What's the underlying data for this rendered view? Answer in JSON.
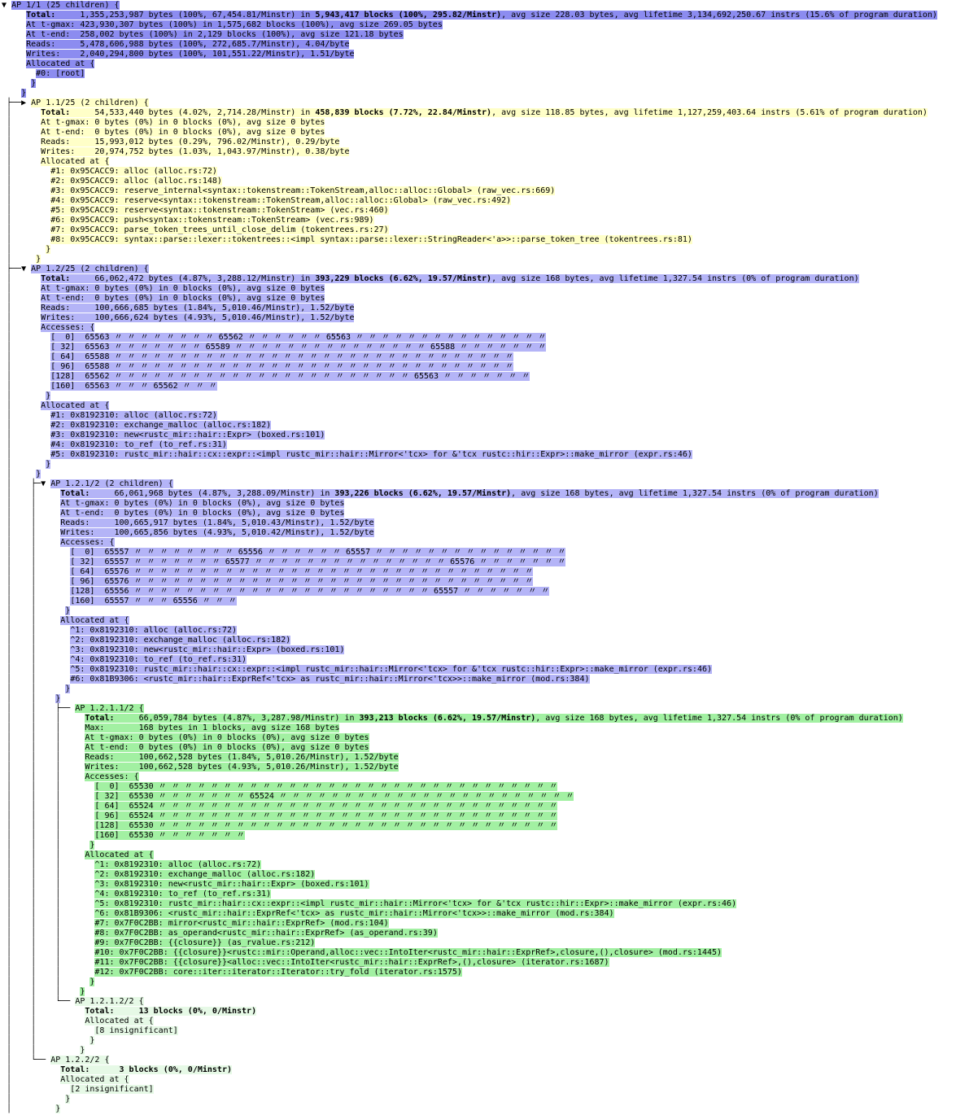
{
  "colors": {
    "root": "#8c8cf0",
    "branch": "#b4b4f7",
    "collapsed": "#ffffc8",
    "leaf": "#a2f0a2",
    "insig": "#e6f9e6"
  },
  "labels": {
    "allocated_at": "Allocated at {",
    "accesses": "Accesses: {",
    "close": "}",
    "ditto": "〃",
    "access_row_labels": [
      "[  0]",
      "[ 32]",
      "[ 64]",
      "[ 96]",
      "[128]",
      "[160]"
    ],
    "expanded_icon": "▼",
    "collapsed_icon": "▶"
  },
  "nodes": [
    {
      "id": "1",
      "color": "root",
      "head": "",
      "arrow": "▼",
      "cont": "",
      "cols": {
        "stat": 5,
        "row": 7,
        "frame": 7,
        "inner": 6,
        "close": 4
      },
      "header": "AP 1/1 (25 children) {",
      "stats": [
        [
          [
            "Total:",
            1
          ],
          [
            "     1,355,253,987 bytes (100%, 67,454.81/Minstr) in ",
            0
          ],
          [
            "5,943,417 blocks (100%, 295.82/Minstr)",
            1
          ],
          [
            ", avg size 228.03 bytes, avg lifetime 3,134,692,250.67 instrs (15.6% of program duration)",
            0
          ]
        ],
        [
          [
            "At t-gmax: 423,930,307 bytes (100%) in 1,575,682 blocks (100%), avg size 269.05 bytes",
            0
          ]
        ],
        [
          [
            "At t-end:  258,002 bytes (100%) in 2,129 blocks (100%), avg size 121.18 bytes",
            0
          ]
        ],
        [
          [
            "Reads:     5,478,606,988 bytes (100%, 272,685.7/Minstr), 4.04/byte",
            0
          ]
        ],
        [
          [
            "Writes:    2,040,294,800 bytes (100%, 101,551.22/Minstr), 1.51/byte",
            0
          ]
        ]
      ],
      "accesses": null,
      "frames": [
        "#0: [root]"
      ]
    },
    {
      "id": "1.1",
      "color": "collapsed",
      "head": " ├──",
      "arrow": "▶",
      "cont": " │",
      "cols": {
        "stat": 8,
        "row": 10,
        "frame": 10,
        "inner": 9,
        "close": 7
      },
      "header": "AP 1.1/25 (2 children) {",
      "stats": [
        [
          [
            "Total:",
            1
          ],
          [
            "     54,533,440 bytes (4.02%, 2,714.28/Minstr) in ",
            0
          ],
          [
            "458,839 blocks (7.72%, 22.84/Minstr)",
            1
          ],
          [
            ", avg size 118.85 bytes, avg lifetime 1,127,259,403.64 instrs (5.61% of program duration)",
            0
          ]
        ],
        [
          [
            "At t-gmax: 0 bytes (0%) in 0 blocks (0%), avg size 0 bytes",
            0
          ]
        ],
        [
          [
            "At t-end:  0 bytes (0%) in 0 blocks (0%), avg size 0 bytes",
            0
          ]
        ],
        [
          [
            "Reads:     15,993,012 bytes (0.29%, 796.02/Minstr), 0.29/byte",
            0
          ]
        ],
        [
          [
            "Writes:    20,974,752 bytes (1.03%, 1,043.97/Minstr), 0.38/byte",
            0
          ]
        ]
      ],
      "accesses": null,
      "frames": [
        "#1: 0x95CACC9: alloc (alloc.rs:72)",
        "#2: 0x95CACC9: alloc (alloc.rs:148)",
        "#3: 0x95CACC9: reserve_internal<syntax::tokenstream::TokenStream,alloc::alloc::Global> (raw_vec.rs:669)",
        "#4: 0x95CACC9: reserve<syntax::tokenstream::TokenStream,alloc::alloc::Global> (raw_vec.rs:492)",
        "#5: 0x95CACC9: reserve<syntax::tokenstream::TokenStream> (vec.rs:460)",
        "#6: 0x95CACC9: push<syntax::tokenstream::TokenStream> (vec.rs:989)",
        "#7: 0x95CACC9: parse_token_trees_until_close_delim (tokentrees.rs:27)",
        "#8: 0x95CACC9: syntax::parse::lexer::tokentrees::<impl syntax::parse::lexer::StringReader<'a>>::parse_token_tree (tokentrees.rs:81)"
      ]
    },
    {
      "id": "1.2",
      "color": "branch",
      "head": " ├──",
      "arrow": "▼",
      "cont": " │",
      "cols": {
        "stat": 8,
        "row": 10,
        "frame": 10,
        "inner": 9,
        "close": 7
      },
      "header": "AP 1.2/25 (2 children) {",
      "stats": [
        [
          [
            "Total:",
            1
          ],
          [
            "     66,062,472 bytes (4.87%, 3,288.12/Minstr) in ",
            0
          ],
          [
            "393,229 blocks (6.62%, 19.57/Minstr)",
            1
          ],
          [
            ", avg size 168 bytes, avg lifetime 1,327.54 instrs (0% of program duration)",
            0
          ]
        ],
        [
          [
            "At t-gmax: 0 bytes (0%) in 0 blocks (0%), avg size 0 bytes",
            0
          ]
        ],
        [
          [
            "At t-end:  0 bytes (0%) in 0 blocks (0%), avg size 0 bytes",
            0
          ]
        ],
        [
          [
            "Reads:     100,666,685 bytes (1.84%, 5,010.46/Minstr), 1.52/byte",
            0
          ]
        ],
        [
          [
            "Writes:    100,666,624 bytes (4.93%, 5,010.46/Minstr), 1.52/byte",
            0
          ]
        ]
      ],
      "accesses": [
        [
          [
            "65563",
            9
          ],
          [
            "65562",
            7
          ],
          [
            "65563",
            16
          ]
        ],
        [
          [
            "65563",
            8
          ],
          [
            "65589",
            16
          ],
          [
            "65588",
            8
          ]
        ],
        [
          [
            "65588",
            32
          ]
        ],
        [
          [
            "65588",
            32
          ]
        ],
        [
          [
            "65562",
            24
          ],
          [
            "65563",
            8
          ]
        ],
        [
          [
            "65563",
            4
          ],
          [
            "65562",
            4
          ]
        ]
      ],
      "frames": [
        "#1: 0x8192310: alloc (alloc.rs:72)",
        "#2: 0x8192310: exchange_malloc (alloc.rs:182)",
        "#3: 0x8192310: new<rustc_mir::hair::Expr> (boxed.rs:101)",
        "#4: 0x8192310: to_ref (to_ref.rs:31)",
        "#5: 0x8192310: rustc_mir::hair::cx::expr::<impl rustc_mir::hair::Mirror<'tcx> for &'tcx rustc::hir::Expr>::make_mirror (expr.rs:46)"
      ]
    },
    {
      "id": "1.2.1",
      "color": "branch",
      "head": " │    ├─",
      "arrow": "▼",
      "cont": " │    │",
      "cols": {
        "stat": 12,
        "row": 14,
        "frame": 14,
        "inner": 13,
        "close": 11
      },
      "header": "AP 1.2.1/2 (2 children) {",
      "stats": [
        [
          [
            "Total:",
            1
          ],
          [
            "     66,061,968 bytes (4.87%, 3,288.09/Minstr) in ",
            0
          ],
          [
            "393,226 blocks (6.62%, 19.57/Minstr)",
            1
          ],
          [
            ", avg size 168 bytes, avg lifetime 1,327.54 instrs (0% of program duration)",
            0
          ]
        ],
        [
          [
            "At t-gmax: 0 bytes (0%) in 0 blocks (0%), avg size 0 bytes",
            0
          ]
        ],
        [
          [
            "At t-end:  0 bytes (0%) in 0 blocks (0%), avg size 0 bytes",
            0
          ]
        ],
        [
          [
            "Reads:     100,665,917 bytes (1.84%, 5,010.43/Minstr), 1.52/byte",
            0
          ]
        ],
        [
          [
            "Writes:    100,665,856 bytes (4.93%, 5,010.42/Minstr), 1.52/byte",
            0
          ]
        ]
      ],
      "accesses": [
        [
          [
            "65557",
            9
          ],
          [
            "65556",
            7
          ],
          [
            "65557",
            16
          ]
        ],
        [
          [
            "65557",
            8
          ],
          [
            "65577",
            16
          ],
          [
            "65576",
            8
          ]
        ],
        [
          [
            "65576",
            32
          ]
        ],
        [
          [
            "65576",
            32
          ]
        ],
        [
          [
            "65556",
            24
          ],
          [
            "65557",
            8
          ]
        ],
        [
          [
            "65557",
            4
          ],
          [
            "65556",
            4
          ]
        ]
      ],
      "frames": [
        "^1: 0x8192310: alloc (alloc.rs:72)",
        "^2: 0x8192310: exchange_malloc (alloc.rs:182)",
        "^3: 0x8192310: new<rustc_mir::hair::Expr> (boxed.rs:101)",
        "^4: 0x8192310: to_ref (to_ref.rs:31)",
        "^5: 0x8192310: rustc_mir::hair::cx::expr::<impl rustc_mir::hair::Mirror<'tcx> for &'tcx rustc::hir::Expr>::make_mirror (expr.rs:46)",
        "#6: 0x81B9306: <rustc_mir::hair::ExprRef<'tcx> as rustc_mir::hair::Mirror<'tcx>>::make_mirror (mod.rs:384)"
      ]
    },
    {
      "id": "1.2.1.1",
      "color": "leaf",
      "head": " │    │    ├── ",
      "arrow": null,
      "cont": " │    │    │",
      "cols": {
        "stat": 17,
        "row": 19,
        "frame": 19,
        "inner": 18,
        "close": 16
      },
      "header": "AP 1.2.1.1/2 {",
      "stats": [
        [
          [
            "Total:",
            1
          ],
          [
            "     66,059,784 bytes (4.87%, 3,287.98/Minstr) in ",
            0
          ],
          [
            "393,213 blocks (6.62%, 19.57/Minstr)",
            1
          ],
          [
            ", avg size 168 bytes, avg lifetime 1,327.54 instrs (0% of program duration)",
            0
          ]
        ],
        [
          [
            "Max:       168 bytes in 1 blocks, avg size 168 bytes",
            0
          ]
        ],
        [
          [
            "At t-gmax: 0 bytes (0%) in 0 blocks (0%), avg size 0 bytes",
            0
          ]
        ],
        [
          [
            "At t-end:  0 bytes (0%) in 0 blocks (0%), avg size 0 bytes",
            0
          ]
        ],
        [
          [
            "Reads:     100,662,528 bytes (1.84%, 5,010.26/Minstr), 1.52/byte",
            0
          ]
        ],
        [
          [
            "Writes:    100,662,528 bytes (4.93%, 5,010.26/Minstr), 1.52/byte",
            0
          ]
        ]
      ],
      "accesses": [
        [
          [
            "65530",
            32
          ]
        ],
        [
          [
            "65530",
            8
          ],
          [
            "65524",
            24
          ]
        ],
        [
          [
            "65524",
            32
          ]
        ],
        [
          [
            "65524",
            32
          ]
        ],
        [
          [
            "65530",
            32
          ]
        ],
        [
          [
            "65530",
            8
          ]
        ]
      ],
      "frames": [
        "^1: 0x8192310: alloc (alloc.rs:72)",
        "^2: 0x8192310: exchange_malloc (alloc.rs:182)",
        "^3: 0x8192310: new<rustc_mir::hair::Expr> (boxed.rs:101)",
        "^4: 0x8192310: to_ref (to_ref.rs:31)",
        "^5: 0x8192310: rustc_mir::hair::cx::expr::<impl rustc_mir::hair::Mirror<'tcx> for &'tcx rustc::hir::Expr>::make_mirror (expr.rs:46)",
        "^6: 0x81B9306: <rustc_mir::hair::ExprRef<'tcx> as rustc_mir::hair::Mirror<'tcx>>::make_mirror (mod.rs:384)",
        "#7: 0x7F0C2BB: mirror<rustc_mir::hair::ExprRef> (mod.rs:104)",
        "#8: 0x7F0C2BB: as_operand<rustc_mir::hair::ExprRef> (as_operand.rs:39)",
        "#9: 0x7F0C2BB: {{closure}} (as_rvalue.rs:212)",
        "#10: 0x7F0C2BB: {{closure}}<rustc::mir::Operand,alloc::vec::IntoIter<rustc_mir::hair::ExprRef>,closure,(),closure> (mod.rs:1445)",
        "#11: 0x7F0C2BB: {{closure}}<alloc::vec::IntoIter<rustc_mir::hair::ExprRef>,(),closure> (iterator.rs:1687)",
        "#12: 0x7F0C2BB: core::iter::iterator::Iterator::try_fold (iterator.rs:1575)"
      ]
    },
    {
      "id": "1.2.1.2",
      "color": "insig",
      "head": " │    │    └── ",
      "arrow": null,
      "cont": " │    │",
      "cols": {
        "stat": 17,
        "row": 19,
        "frame": 19,
        "inner": 18,
        "close": 16
      },
      "header": "AP 1.2.1.2/2 {",
      "stats": [
        [
          [
            "Total:     13 blocks (0%, 0/Minstr)",
            1
          ]
        ]
      ],
      "accesses": null,
      "frames": [
        "[8 insignificant]"
      ]
    },
    {
      "id": "1.2.2",
      "color": "insig",
      "head": " │    └── ",
      "arrow": null,
      "cont": " │",
      "cols": {
        "stat": 12,
        "row": 14,
        "frame": 14,
        "inner": 13,
        "close": 11
      },
      "header": "AP 1.2.2/2 {",
      "stats": [
        [
          [
            "Total:      3 blocks (0%, 0/Minstr)",
            1
          ]
        ]
      ],
      "accesses": null,
      "frames": [
        "[2 insignificant]"
      ]
    }
  ]
}
